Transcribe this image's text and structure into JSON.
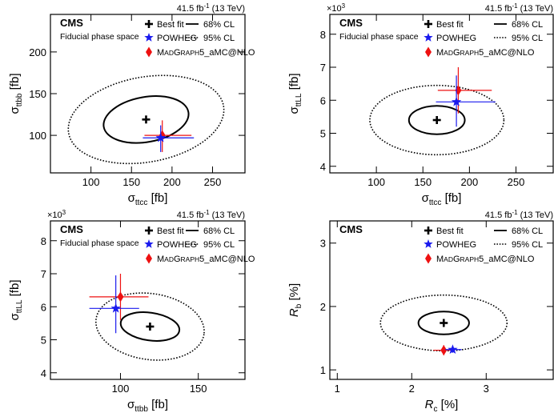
{
  "figure": {
    "lumi_text": "41.5 fb",
    "lumi_sup": "-1",
    "lumi_tail": " (13 TeV)",
    "cms_label": "CMS",
    "subtitle": "Fiducial phase space",
    "legend": {
      "best_fit": "Best fit",
      "powheg": "POWHEG",
      "mg_prefix": "M",
      "mg_small1": "AD",
      "mg_mid": "G",
      "mg_small2": "RAPH",
      "mg_suffix": "5_aMC@NLO",
      "cl68": "68% CL",
      "cl95": "95% CL"
    },
    "colors": {
      "powheg": "#1a1aee",
      "madgraph": "#ee1111",
      "frame": "#000000"
    }
  },
  "chart_data": [
    {
      "type": "scatter",
      "panel": "top-left",
      "show_subtitle": true,
      "show_legend_text": true,
      "exponent": "",
      "xlabel": "σ_ttcc [fb]",
      "ylabel": "σ_ttbb [fb]",
      "xlim": [
        50,
        290
      ],
      "ylim": [
        55,
        245
      ],
      "xticks": [
        100,
        150,
        200,
        250
      ],
      "yticks": [
        100,
        150,
        200
      ],
      "best_fit": {
        "x": 168,
        "y": 119
      },
      "contour68": {
        "cx": 168,
        "cy": 119,
        "rx": 53,
        "ry": 27,
        "angle": 10
      },
      "contour95": {
        "cx": 168,
        "cy": 119,
        "rx": 97,
        "ry": 51,
        "angle": 10
      },
      "powheg": {
        "x": 186,
        "y": 97,
        "xerr": [
          22,
          41
        ],
        "yerr": [
          17,
          15
        ]
      },
      "madgraph": {
        "x": 188,
        "y": 100,
        "xerr": [
          22,
          36
        ],
        "yerr": [
          20,
          18
        ]
      }
    },
    {
      "type": "scatter",
      "panel": "top-right",
      "show_subtitle": true,
      "show_legend_text": true,
      "exponent": "×10",
      "exponent_sup": "3",
      "xlabel": "σ_ttcc [fb]",
      "ylabel": "σ_ttLL [fb]",
      "xlim": [
        50,
        290
      ],
      "ylim": [
        3800,
        8600
      ],
      "xticks": [
        100,
        150,
        200,
        250
      ],
      "yticks": [
        4000,
        5000,
        6000,
        7000,
        8000
      ],
      "ytick_labels": [
        "4",
        "5",
        "6",
        "7",
        "8"
      ],
      "best_fit": {
        "x": 165,
        "y": 5400
      },
      "contour68": {
        "cx": 165,
        "cy": 5400,
        "rx": 30,
        "ry": 430,
        "angle": 0
      },
      "contour95": {
        "cx": 165,
        "cy": 5400,
        "rx": 72,
        "ry": 1050,
        "angle": 0
      },
      "powheg": {
        "x": 186,
        "y": 5950,
        "xerr": [
          22,
          42
        ],
        "yerr": [
          750,
          800
        ]
      },
      "madgraph": {
        "x": 188,
        "y": 6300,
        "xerr": [
          22,
          36
        ],
        "yerr": [
          700,
          700
        ]
      }
    },
    {
      "type": "scatter",
      "panel": "bottom-left",
      "show_subtitle": true,
      "show_legend_text": true,
      "exponent": "×10",
      "exponent_sup": "3",
      "xlabel": "σ_ttbb [fb]",
      "ylabel": "σ_ttLL [fb]",
      "xlim": [
        55,
        180
      ],
      "ylim": [
        3800,
        8600
      ],
      "xticks": [
        100,
        150
      ],
      "yticks": [
        4000,
        5000,
        6000,
        7000,
        8000
      ],
      "ytick_labels": [
        "4",
        "5",
        "6",
        "7",
        "8"
      ],
      "best_fit": {
        "x": 119,
        "y": 5400
      },
      "contour68": {
        "cx": 119,
        "cy": 5400,
        "rx": 19,
        "ry": 420,
        "angle": -8
      },
      "contour95": {
        "cx": 119,
        "cy": 5400,
        "rx": 35,
        "ry": 1000,
        "angle": -8
      },
      "powheg": {
        "x": 97,
        "y": 5950,
        "xerr": [
          17,
          15
        ],
        "yerr": [
          750,
          1000
        ]
      },
      "madgraph": {
        "x": 100,
        "y": 6300,
        "xerr": [
          20,
          18
        ],
        "yerr": [
          700,
          700
        ]
      }
    },
    {
      "type": "scatter",
      "panel": "bottom-right",
      "show_subtitle": false,
      "show_legend_text": true,
      "exponent": "",
      "xlabel": "R_c [%]",
      "ylabel": "R_b [%]",
      "xlim": [
        0.9,
        3.9
      ],
      "ylim": [
        0.85,
        3.35
      ],
      "xticks": [
        1,
        2,
        3
      ],
      "yticks": [
        1,
        2,
        3
      ],
      "best_fit": {
        "x": 2.43,
        "y": 1.74
      },
      "contour68": {
        "cx": 2.43,
        "cy": 1.74,
        "rx": 0.34,
        "ry": 0.18,
        "angle": 0
      },
      "contour95": {
        "cx": 2.43,
        "cy": 1.74,
        "rx": 0.85,
        "ry": 0.44,
        "angle": 0
      },
      "powheg": {
        "x": 2.55,
        "y": 1.32,
        "xerr": [
          0.1,
          0.12
        ],
        "yerr": [
          0.05,
          0.05
        ]
      },
      "madgraph": {
        "x": 2.43,
        "y": 1.31,
        "xerr": [
          0.14,
          0.12
        ],
        "yerr": [
          0.08,
          0.08
        ]
      }
    }
  ]
}
